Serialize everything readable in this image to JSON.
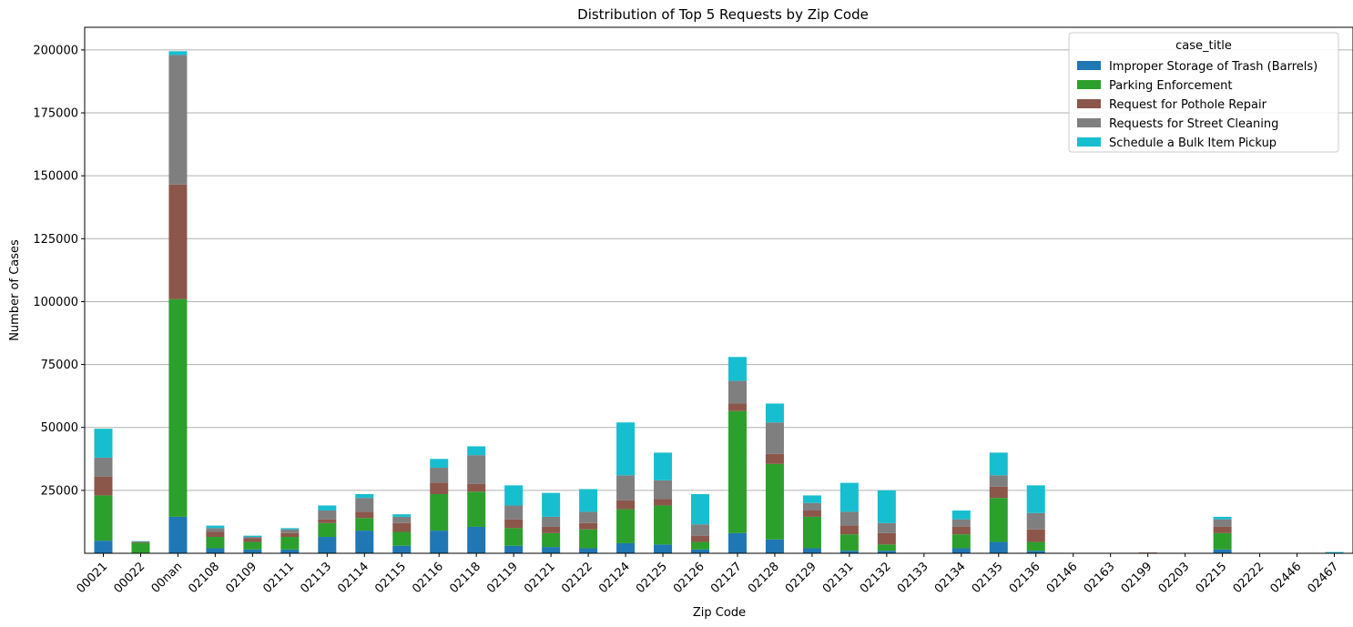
{
  "chart_data": {
    "type": "bar",
    "stacked": true,
    "title": "Distribution of Top 5 Requests by Zip Code",
    "xlabel": "Zip Code",
    "ylabel": "Number of Cases",
    "ylim": [
      0,
      209000
    ],
    "yticks": [
      25000,
      50000,
      75000,
      100000,
      125000,
      150000,
      175000,
      200000
    ],
    "grid": "y",
    "legend": {
      "title": "case_title",
      "position": "top-right"
    },
    "categories": [
      "00021",
      "00022",
      "00nan",
      "02108",
      "02109",
      "02111",
      "02113",
      "02114",
      "02115",
      "02116",
      "02118",
      "02119",
      "02121",
      "02122",
      "02124",
      "02125",
      "02126",
      "02127",
      "02128",
      "02129",
      "02131",
      "02132",
      "02133",
      "02134",
      "02135",
      "02136",
      "02146",
      "02163",
      "02199",
      "02203",
      "02215",
      "02222",
      "02446",
      "02467"
    ],
    "series": [
      {
        "name": "Improper Storage of Trash (Barrels)",
        "color": "#1f77b4",
        "values": [
          5000,
          200,
          14500,
          2000,
          1500,
          1500,
          6500,
          9000,
          3000,
          9000,
          10500,
          3000,
          2500,
          2000,
          4000,
          3500,
          1500,
          8000,
          5500,
          2000,
          1000,
          1000,
          0,
          2000,
          4500,
          1000,
          0,
          0,
          0,
          0,
          1500,
          0,
          0,
          0
        ]
      },
      {
        "name": "Parking Enforcement",
        "color": "#2ca02c",
        "values": [
          18000,
          4000,
          86500,
          4500,
          3000,
          5000,
          5500,
          5000,
          5500,
          14500,
          14000,
          7000,
          5500,
          7500,
          13500,
          15500,
          3000,
          48500,
          30000,
          12500,
          6500,
          2500,
          0,
          5500,
          17500,
          3500,
          0,
          0,
          0,
          0,
          6500,
          0,
          0,
          0
        ]
      },
      {
        "name": "Request for Pothole Repair",
        "color": "#8c564b",
        "values": [
          7500,
          300,
          45500,
          2000,
          1500,
          1500,
          1500,
          2500,
          3500,
          4500,
          3000,
          3500,
          2500,
          2500,
          3500,
          2500,
          2500,
          3000,
          4000,
          2500,
          3500,
          4500,
          100,
          3000,
          4500,
          5000,
          0,
          0,
          300,
          0,
          2500,
          0,
          0,
          0
        ]
      },
      {
        "name": "Requests for Street Cleaning",
        "color": "#7f7f7f",
        "values": [
          7500,
          200,
          51500,
          1500,
          500,
          1500,
          3500,
          5500,
          2500,
          6000,
          11500,
          5500,
          4000,
          4500,
          10000,
          7500,
          4500,
          9000,
          12500,
          3000,
          5500,
          4000,
          0,
          3000,
          4500,
          6500,
          0,
          0,
          0,
          0,
          3000,
          0,
          0,
          0
        ]
      },
      {
        "name": "Schedule a Bulk Item Pickup",
        "color": "#17becf",
        "values": [
          11500,
          100,
          1500,
          1000,
          500,
          500,
          2000,
          1500,
          1000,
          3500,
          3500,
          8000,
          9500,
          9000,
          21000,
          11000,
          12000,
          9500,
          7500,
          3000,
          11500,
          13000,
          0,
          3500,
          9000,
          11000,
          0,
          0,
          0,
          0,
          1000,
          0,
          0,
          500
        ]
      }
    ]
  }
}
